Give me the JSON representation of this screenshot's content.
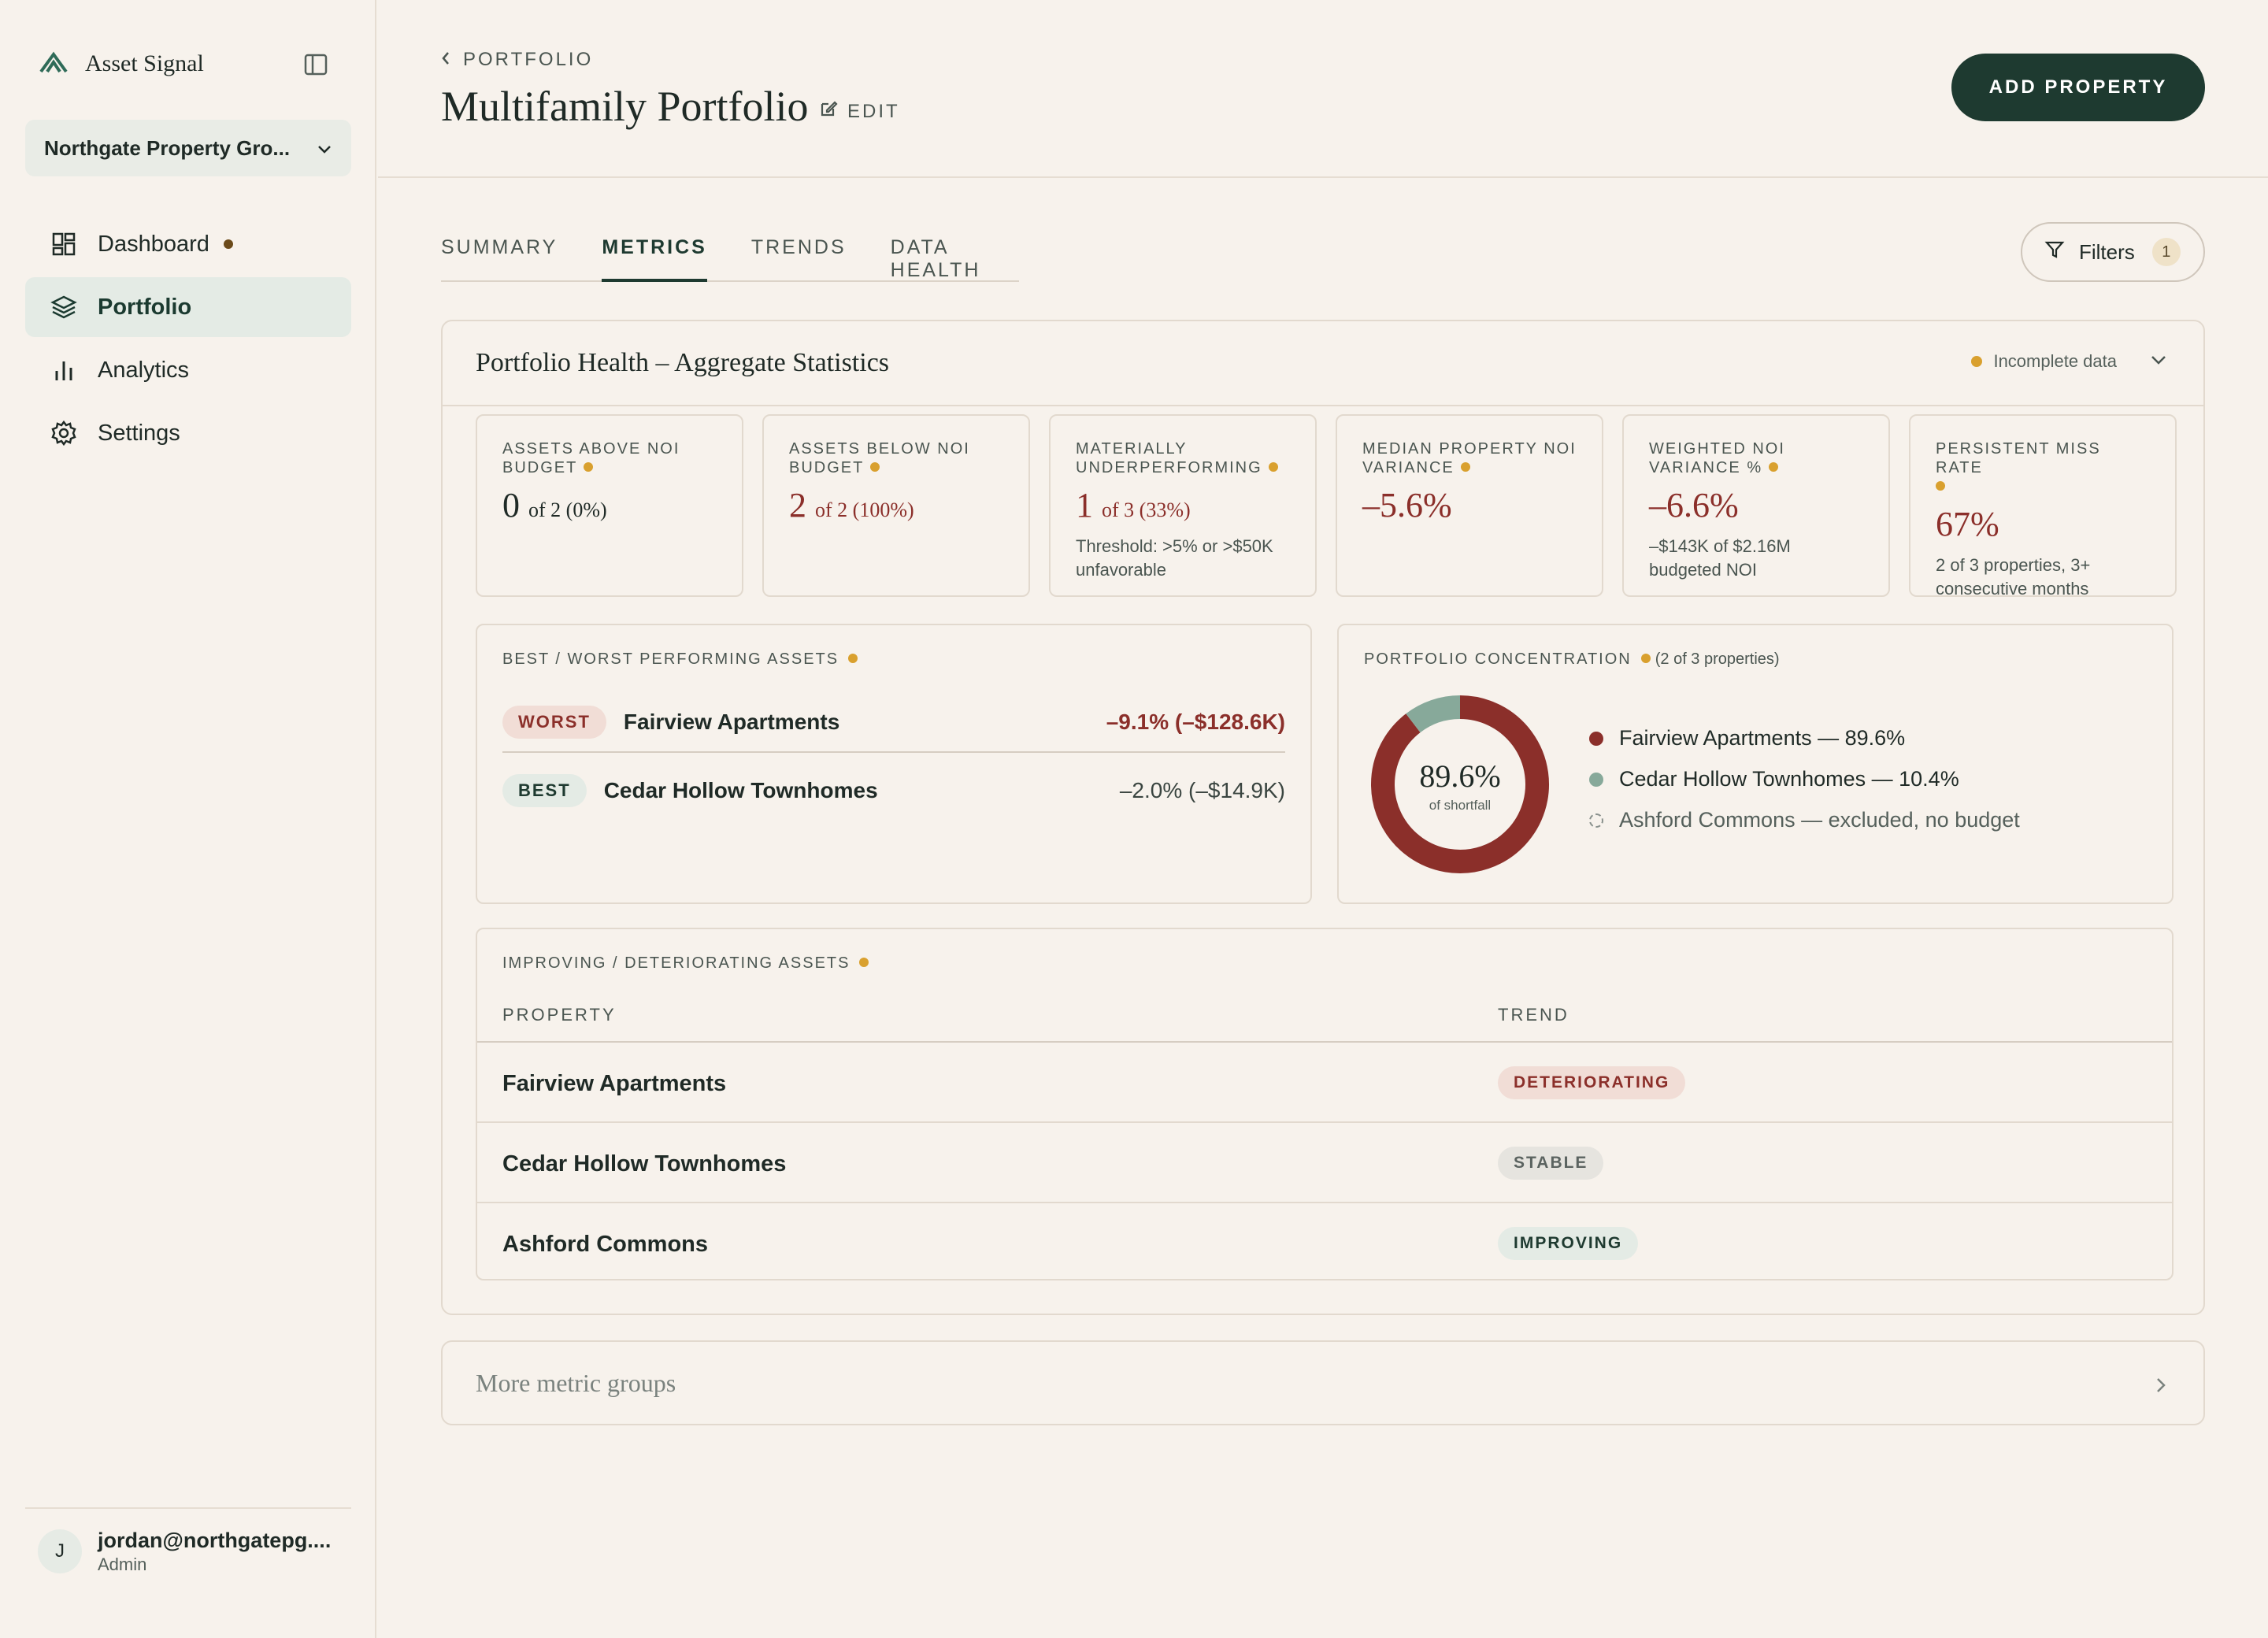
{
  "app": {
    "brand_name": "Asset Signal",
    "org_name": "Northgate Property Gro...",
    "accent": "#1e3a30"
  },
  "nav": {
    "items": [
      {
        "label": "Dashboard",
        "icon": "dashboard-icon"
      },
      {
        "label": "Portfolio",
        "icon": "layers-icon"
      },
      {
        "label": "Analytics",
        "icon": "bar-chart-icon"
      },
      {
        "label": "Settings",
        "icon": "gear-icon"
      }
    ]
  },
  "user": {
    "initial": "J",
    "email": "jordan@northgatepg....",
    "role": "Admin"
  },
  "header": {
    "breadcrumb": "PORTFOLIO",
    "title": "Multifamily Portfolio",
    "edit_label": "EDIT",
    "add_button": "ADD PROPERTY"
  },
  "tabs": [
    {
      "label": "SUMMARY"
    },
    {
      "label": "METRICS"
    },
    {
      "label": "TRENDS"
    },
    {
      "label": "DATA HEALTH"
    }
  ],
  "filters": {
    "label": "Filters",
    "count": "1"
  },
  "panel": {
    "title": "Portfolio Health – Aggregate Statistics",
    "status": "Incomplete data",
    "stats": [
      {
        "label": "ASSETS ABOVE NOI BUDGET",
        "value": "0",
        "sub": "of 2 (0%)",
        "note": ""
      },
      {
        "label": "ASSETS BELOW NOI BUDGET",
        "value": "2",
        "sub": "of 2 (100%)",
        "note": ""
      },
      {
        "label": "MATERIALLY UNDERPERFORMING",
        "value": "1",
        "sub": "of 3 (33%)",
        "note": "Threshold: >5% or >$50K unfavorable"
      },
      {
        "label": "MEDIAN PROPERTY NOI VARIANCE",
        "value": "–5.6%",
        "sub": "",
        "note": ""
      },
      {
        "label": "WEIGHTED NOI VARIANCE %",
        "value": "–6.6%",
        "sub": "",
        "note": "–$143K of $2.16M budgeted NOI"
      },
      {
        "label": "PERSISTENT MISS RATE",
        "value": "67%",
        "sub": "",
        "note": "2 of 3 properties, 3+ consecutive months"
      }
    ],
    "best_worst": {
      "label": "BEST / WORST PERFORMING ASSETS",
      "worst": {
        "badge": "WORST",
        "name": "Fairview Apartments",
        "value": "–9.1% (–$128.6K)"
      },
      "best": {
        "badge": "BEST",
        "name": "Cedar Hollow Townhomes",
        "value": "–2.0% (–$14.9K)"
      }
    },
    "concentration": {
      "label": "PORTFOLIO CONCENTRATION",
      "note": "(2 of 3 properties)",
      "center_value": "89.6%",
      "center_label": "of shortfall",
      "slices": [
        {
          "name": "Fairview Apartments — 89.6%",
          "value": 89.6,
          "color": "#8b2f2a"
        },
        {
          "name": "Cedar Hollow Townhomes — 10.4%",
          "value": 10.4,
          "color": "#87a99a"
        }
      ],
      "excluded": "Ashford Commons — excluded, no budget"
    },
    "trend_table": {
      "label": "IMPROVING / DETERIORATING ASSETS",
      "col_property": "PROPERTY",
      "col_trend": "TREND",
      "rows": [
        {
          "name": "Fairview Apartments",
          "trend": "DETERIORATING"
        },
        {
          "name": "Cedar Hollow Townhomes",
          "trend": "STABLE"
        },
        {
          "name": "Ashford Commons",
          "trend": "IMPROVING"
        }
      ]
    }
  },
  "more_groups": "More metric groups"
}
